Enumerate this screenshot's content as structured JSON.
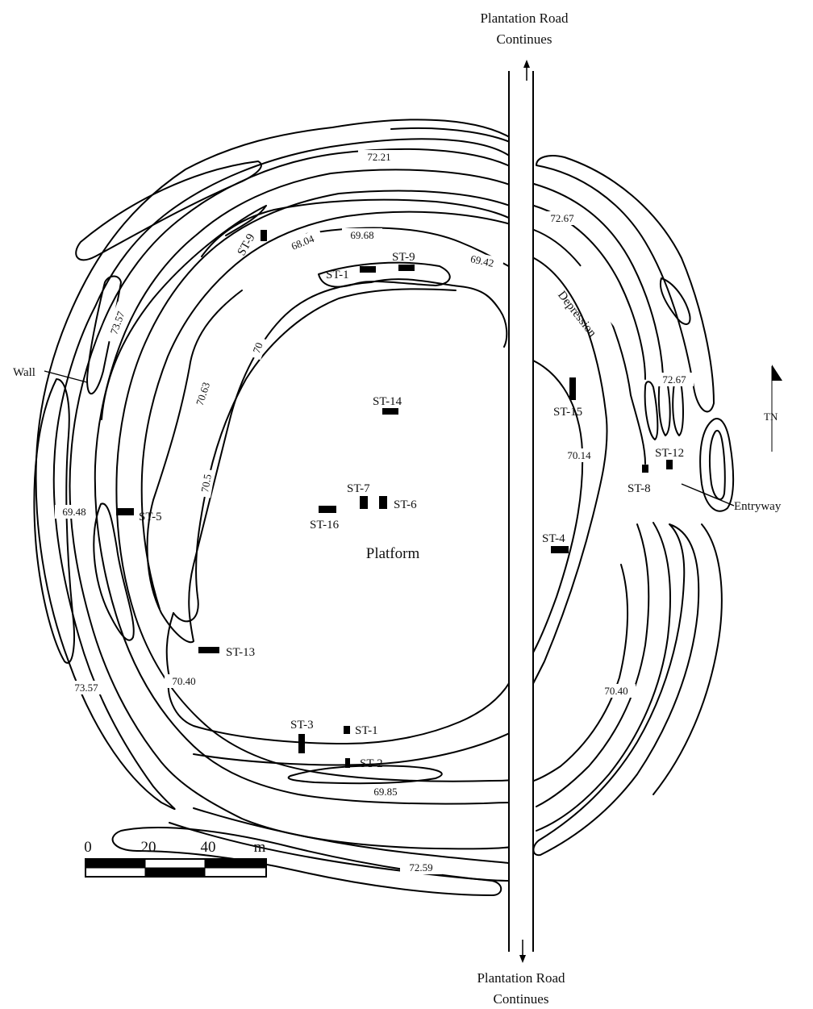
{
  "road": {
    "top_label_line1": "Plantation Road",
    "top_label_line2": "Continues",
    "bottom_label_line1": "Plantation Road",
    "bottom_label_line2": "Continues"
  },
  "features": {
    "wall": "Wall",
    "depression": "Depression",
    "platform": "Platform",
    "entryway": "Entryway"
  },
  "north_arrow": {
    "label": "TN"
  },
  "contours": [
    {
      "id": "c1",
      "label": "72.21"
    },
    {
      "id": "c2",
      "label": "72.67"
    },
    {
      "id": "c3",
      "label": "68.04"
    },
    {
      "id": "c4",
      "label": "69.68"
    },
    {
      "id": "c5",
      "label": "69.42"
    },
    {
      "id": "c6",
      "label": "73.57"
    },
    {
      "id": "c7",
      "label": "70.63"
    },
    {
      "id": "c8",
      "label": "70"
    },
    {
      "id": "c9",
      "label": "70.5"
    },
    {
      "id": "c10",
      "label": "72.67"
    },
    {
      "id": "c11",
      "label": "70.14"
    },
    {
      "id": "c12",
      "label": "69.48"
    },
    {
      "id": "c13",
      "label": "70.40"
    },
    {
      "id": "c14",
      "label": "73.57"
    },
    {
      "id": "c15",
      "label": "70.40"
    },
    {
      "id": "c16",
      "label": "69.85"
    },
    {
      "id": "c17",
      "label": "72.59"
    }
  ],
  "test_pits": [
    {
      "id": "p1",
      "label": "ST-9"
    },
    {
      "id": "p2",
      "label": "ST-1"
    },
    {
      "id": "p3",
      "label": "ST-9"
    },
    {
      "id": "p4",
      "label": "ST-14"
    },
    {
      "id": "p5",
      "label": "ST-15"
    },
    {
      "id": "p6",
      "label": "ST-12"
    },
    {
      "id": "p7",
      "label": "ST-8"
    },
    {
      "id": "p8",
      "label": "ST-7"
    },
    {
      "id": "p9",
      "label": "ST-6"
    },
    {
      "id": "p10",
      "label": "ST-16"
    },
    {
      "id": "p11",
      "label": "ST-5"
    },
    {
      "id": "p12",
      "label": "ST-4"
    },
    {
      "id": "p13",
      "label": "ST-13"
    },
    {
      "id": "p14",
      "label": "ST-3"
    },
    {
      "id": "p15",
      "label": "ST-1"
    },
    {
      "id": "p16",
      "label": "ST-2"
    }
  ],
  "scale_bar": {
    "ticks": [
      "0",
      "20",
      "40"
    ],
    "unit": "m"
  }
}
